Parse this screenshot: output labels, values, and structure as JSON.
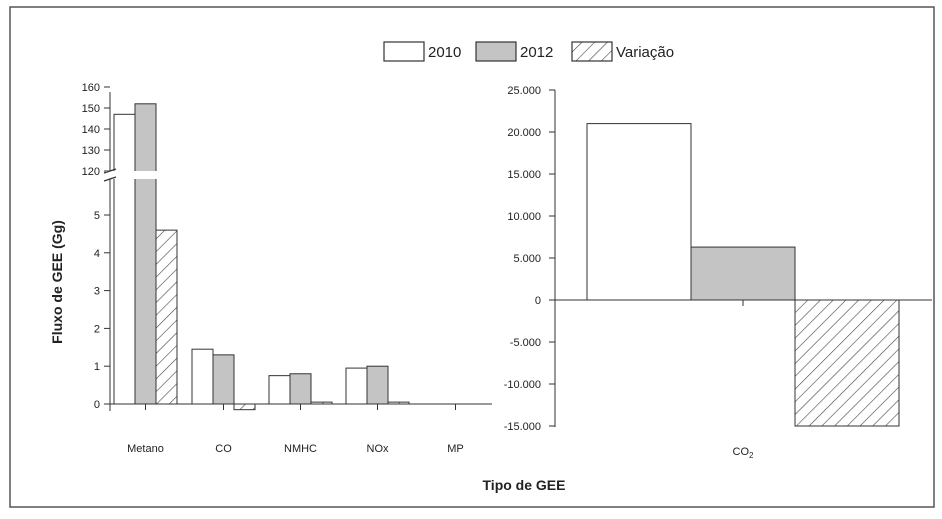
{
  "legend": [
    "2010",
    "2012",
    "Variação"
  ],
  "xlabel": "Tipo de GEE",
  "ylabel": "Fluxo de GEE (Gg)",
  "colors": {
    "2010": "#ffffff",
    "2012": "#c4c4c4",
    "Variação": "hatch",
    "stroke": "#333333"
  },
  "chart_data": [
    {
      "type": "bar",
      "categories": [
        "Metano",
        "CO",
        "NMHC",
        "NOx",
        "MP"
      ],
      "series": [
        {
          "name": "2010",
          "values": [
            147,
            1.45,
            0.75,
            0.95,
            0
          ]
        },
        {
          "name": "2012",
          "values": [
            152,
            1.3,
            0.8,
            1.0,
            0
          ]
        },
        {
          "name": "Variação",
          "values": [
            4.6,
            -0.15,
            0.05,
            0.05,
            0
          ]
        }
      ],
      "yaxis_break": {
        "lower": [
          0,
          5.9
        ],
        "upper": [
          117,
          160
        ]
      },
      "yticks_lower": [
        0,
        1,
        2,
        3,
        4,
        5
      ],
      "yticks_upper": [
        120,
        130,
        140,
        150,
        160
      ],
      "xlabel": "Tipo de GEE",
      "ylabel": "Fluxo de GEE (Gg)"
    },
    {
      "type": "bar",
      "categories": [
        "CO2"
      ],
      "series": [
        {
          "name": "2010",
          "values": [
            21000
          ]
        },
        {
          "name": "2012",
          "values": [
            6300
          ]
        },
        {
          "name": "Variação",
          "values": [
            -15000
          ]
        }
      ],
      "ylim": [
        -15000,
        25000
      ],
      "yticks": [
        -15000,
        -10000,
        -5000,
        0,
        5000,
        10000,
        15000,
        20000,
        25000
      ],
      "ytick_labels": [
        "-15.000",
        "-10.000",
        "-5.000",
        "0",
        "5.000",
        "10.000",
        "15.000",
        "20.000",
        "25.000"
      ]
    }
  ]
}
